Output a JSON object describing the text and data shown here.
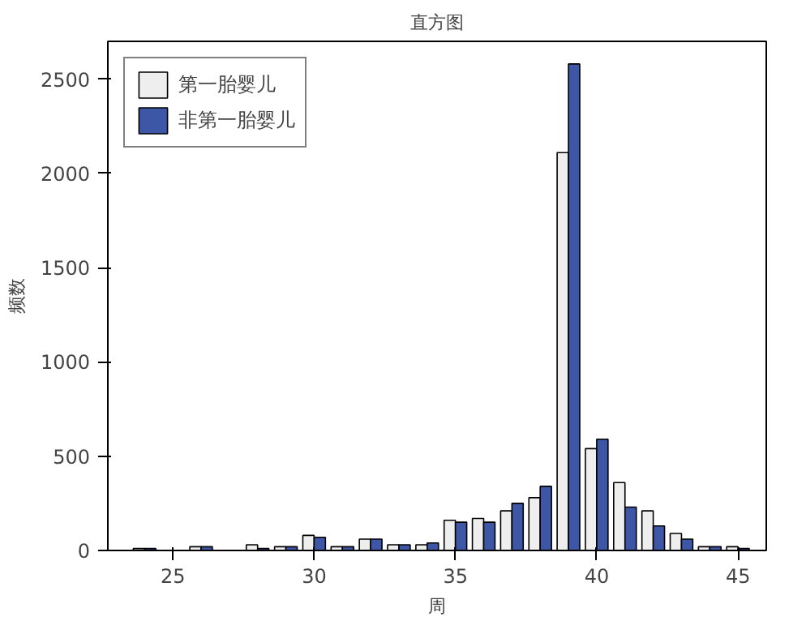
{
  "chart_data": {
    "type": "histogram",
    "title": "直方图",
    "xlabel": "周",
    "ylabel": "频数",
    "bins": [
      23.5,
      24.5,
      25.5,
      26.5,
      27.5,
      28.5,
      29.5,
      30.5,
      31.5,
      32.5,
      33.5,
      34.5,
      35.5,
      36.5,
      37.5,
      38.5,
      39.5,
      40.5,
      41.5,
      42.5,
      43.5,
      44.5,
      45.5
    ],
    "series": [
      {
        "name": "第一胎婴儿",
        "color": "#eeeeee",
        "values": [
          10,
          0,
          20,
          0,
          30,
          20,
          80,
          20,
          60,
          30,
          30,
          160,
          170,
          210,
          280,
          2110,
          540,
          360,
          210,
          90,
          20,
          20
        ]
      },
      {
        "name": "非第一胎婴儿",
        "color": "#3e56a6",
        "values": [
          10,
          0,
          20,
          0,
          10,
          20,
          70,
          20,
          60,
          30,
          40,
          150,
          150,
          250,
          340,
          2580,
          590,
          230,
          130,
          60,
          20,
          10
        ]
      }
    ],
    "xlim": [
      22.7,
      46
    ],
    "ylim": [
      0,
      2700
    ],
    "xticks": [
      25,
      30,
      35,
      40,
      45
    ],
    "yticks": [
      0,
      500,
      1000,
      1500,
      2000,
      2500
    ],
    "grid": false,
    "legend": "top left"
  }
}
